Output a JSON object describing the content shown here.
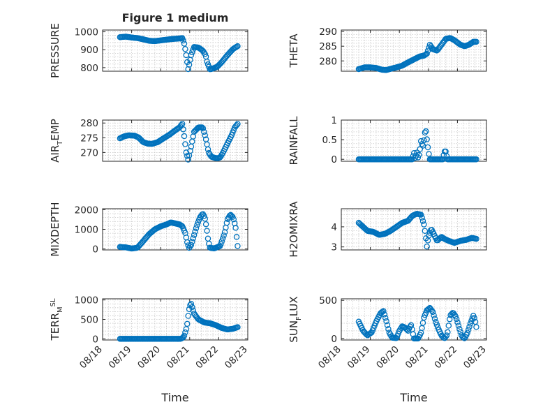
{
  "title": "Figure 1 medium",
  "colors": {
    "marker": "#0072BD",
    "axis": "#262626",
    "grid": "#c8c8c8"
  },
  "chart_data": [
    {
      "id": "pressure",
      "type": "scatter",
      "title": "Figure 1 medium",
      "ylabel_parts": [
        [
          "PRESSURE",
          ""
        ]
      ],
      "yticks": [
        800,
        900,
        1000
      ],
      "ylim": [
        780,
        1010
      ],
      "xlim": [
        0,
        5
      ],
      "xticklabels": [],
      "xlabel": "",
      "grid": true,
      "knots": [
        [
          0.6,
          970
        ],
        [
          0.8,
          973
        ],
        [
          1.0,
          968
        ],
        [
          1.2,
          965
        ],
        [
          1.4,
          958
        ],
        [
          1.6,
          950
        ],
        [
          1.8,
          948
        ],
        [
          2.0,
          952
        ],
        [
          2.2,
          956
        ],
        [
          2.4,
          960
        ],
        [
          2.6,
          962
        ],
        [
          2.75,
          965
        ],
        [
          2.82,
          930
        ],
        [
          2.88,
          870
        ],
        [
          2.95,
          790
        ],
        [
          3.05,
          870
        ],
        [
          3.15,
          915
        ],
        [
          3.3,
          912
        ],
        [
          3.45,
          895
        ],
        [
          3.55,
          870
        ],
        [
          3.6,
          830
        ],
        [
          3.7,
          790
        ],
        [
          3.8,
          795
        ],
        [
          3.95,
          805
        ],
        [
          4.1,
          830
        ],
        [
          4.3,
          870
        ],
        [
          4.5,
          905
        ],
        [
          4.65,
          920
        ]
      ]
    },
    {
      "id": "theta",
      "type": "scatter",
      "title": "",
      "ylabel_parts": [
        [
          "THETA",
          ""
        ]
      ],
      "yticks": [
        280,
        285,
        290
      ],
      "ylim": [
        276.5,
        290.5
      ],
      "xlim": [
        0,
        5
      ],
      "xticklabels": [],
      "xlabel": "",
      "grid": true,
      "knots": [
        [
          0.6,
          277.2
        ],
        [
          0.8,
          277.8
        ],
        [
          1.0,
          277.8
        ],
        [
          1.2,
          277.6
        ],
        [
          1.4,
          277.0
        ],
        [
          1.55,
          276.9
        ],
        [
          1.7,
          277.3
        ],
        [
          1.9,
          277.8
        ],
        [
          2.1,
          278.4
        ],
        [
          2.3,
          279.5
        ],
        [
          2.5,
          280.5
        ],
        [
          2.7,
          281.5
        ],
        [
          2.85,
          281.8
        ],
        [
          2.95,
          282.5
        ],
        [
          3.05,
          285.5
        ],
        [
          3.15,
          284.0
        ],
        [
          3.3,
          283.5
        ],
        [
          3.45,
          285.5
        ],
        [
          3.6,
          287.5
        ],
        [
          3.75,
          287.8
        ],
        [
          3.9,
          287.0
        ],
        [
          4.1,
          285.5
        ],
        [
          4.25,
          285.0
        ],
        [
          4.4,
          285.5
        ],
        [
          4.55,
          286.5
        ],
        [
          4.65,
          286.5
        ]
      ]
    },
    {
      "id": "airtemp",
      "type": "scatter",
      "title": "",
      "ylabel_parts": [
        [
          "AIR",
          ""
        ],
        [
          "T",
          "sub"
        ],
        [
          "EMP",
          ""
        ]
      ],
      "yticks": [
        270,
        275,
        280
      ],
      "ylim": [
        267,
        281
      ],
      "xlim": [
        0,
        5
      ],
      "xticklabels": [],
      "xlabel": "",
      "grid": true,
      "knots": [
        [
          0.6,
          274.8
        ],
        [
          0.75,
          275.5
        ],
        [
          0.9,
          275.8
        ],
        [
          1.1,
          275.7
        ],
        [
          1.25,
          275.0
        ],
        [
          1.4,
          273.5
        ],
        [
          1.55,
          273.0
        ],
        [
          1.7,
          272.9
        ],
        [
          1.9,
          273.5
        ],
        [
          2.1,
          274.8
        ],
        [
          2.3,
          276.0
        ],
        [
          2.5,
          277.5
        ],
        [
          2.65,
          278.5
        ],
        [
          2.75,
          279.8
        ],
        [
          2.82,
          275.0
        ],
        [
          2.88,
          270.0
        ],
        [
          2.95,
          267.5
        ],
        [
          3.05,
          272.0
        ],
        [
          3.15,
          277.0
        ],
        [
          3.3,
          278.5
        ],
        [
          3.45,
          278.5
        ],
        [
          3.55,
          275.0
        ],
        [
          3.65,
          270.0
        ],
        [
          3.75,
          268.5
        ],
        [
          3.85,
          268.2
        ],
        [
          3.95,
          268.0
        ],
        [
          4.05,
          268.3
        ],
        [
          4.15,
          270.0
        ],
        [
          4.3,
          273.0
        ],
        [
          4.45,
          276.0
        ],
        [
          4.55,
          278.5
        ],
        [
          4.65,
          279.7
        ]
      ]
    },
    {
      "id": "rainfall",
      "type": "scatter",
      "title": "",
      "ylabel_parts": [
        [
          "RAINFALL",
          ""
        ]
      ],
      "yticks": [
        0,
        0.5,
        1
      ],
      "yticklabels": [
        "0",
        "0.5",
        "1"
      ],
      "ylim": [
        -0.05,
        1.0
      ],
      "xlim": [
        0,
        5
      ],
      "xticklabels": [],
      "xlabel": "",
      "grid": true,
      "knots": [
        [
          0.6,
          0
        ],
        [
          2.45,
          0
        ],
        [
          2.5,
          0.18
        ],
        [
          2.55,
          0
        ],
        [
          2.6,
          0.2
        ],
        [
          2.65,
          0.02
        ],
        [
          2.7,
          0.2
        ],
        [
          2.75,
          0.5
        ],
        [
          2.8,
          0.3
        ],
        [
          2.85,
          0.5
        ],
        [
          2.9,
          0.8
        ],
        [
          2.95,
          0.5
        ],
        [
          3.0,
          0.2
        ],
        [
          3.05,
          0
        ],
        [
          3.5,
          0
        ],
        [
          3.55,
          0.2
        ],
        [
          3.6,
          0.2
        ],
        [
          3.65,
          0
        ],
        [
          4.65,
          0
        ]
      ]
    },
    {
      "id": "mixdepth",
      "type": "scatter",
      "title": "",
      "ylabel_parts": [
        [
          "MIXDEPTH",
          ""
        ]
      ],
      "yticks": [
        0,
        1000,
        2000
      ],
      "ylim": [
        -50,
        2050
      ],
      "xlim": [
        0,
        5
      ],
      "xticklabels": [],
      "xlabel": "",
      "grid": true,
      "knots": [
        [
          0.6,
          100
        ],
        [
          0.8,
          80
        ],
        [
          1.0,
          20
        ],
        [
          1.2,
          60
        ],
        [
          1.4,
          400
        ],
        [
          1.6,
          750
        ],
        [
          1.8,
          1000
        ],
        [
          2.0,
          1150
        ],
        [
          2.2,
          1250
        ],
        [
          2.35,
          1350
        ],
        [
          2.5,
          1300
        ],
        [
          2.65,
          1250
        ],
        [
          2.75,
          1150
        ],
        [
          2.85,
          800
        ],
        [
          2.92,
          300
        ],
        [
          2.98,
          50
        ],
        [
          3.05,
          200
        ],
        [
          3.15,
          700
        ],
        [
          3.25,
          1200
        ],
        [
          3.35,
          1600
        ],
        [
          3.45,
          1800
        ],
        [
          3.52,
          1600
        ],
        [
          3.58,
          1100
        ],
        [
          3.64,
          400
        ],
        [
          3.7,
          50
        ],
        [
          3.85,
          30
        ],
        [
          4.05,
          150
        ],
        [
          4.2,
          800
        ],
        [
          4.3,
          1500
        ],
        [
          4.4,
          1750
        ],
        [
          4.5,
          1600
        ],
        [
          4.58,
          1100
        ],
        [
          4.65,
          150
        ]
      ]
    },
    {
      "id": "h2omixra",
      "type": "scatter",
      "title": "",
      "ylabel_parts": [
        [
          "H2OMIXRA",
          ""
        ]
      ],
      "yticks": [
        3,
        4
      ],
      "ylim": [
        2.85,
        4.9
      ],
      "xlim": [
        0,
        5
      ],
      "xticklabels": [],
      "xlabel": "",
      "grid": true,
      "knots": [
        [
          0.6,
          4.2
        ],
        [
          0.75,
          4.0
        ],
        [
          0.9,
          3.8
        ],
        [
          1.1,
          3.75
        ],
        [
          1.3,
          3.6
        ],
        [
          1.5,
          3.65
        ],
        [
          1.7,
          3.8
        ],
        [
          1.9,
          4.0
        ],
        [
          2.1,
          4.2
        ],
        [
          2.3,
          4.3
        ],
        [
          2.45,
          4.55
        ],
        [
          2.6,
          4.65
        ],
        [
          2.75,
          4.6
        ],
        [
          2.85,
          4.1
        ],
        [
          2.9,
          3.6
        ],
        [
          2.95,
          3.0
        ],
        [
          3.0,
          3.5
        ],
        [
          3.1,
          3.9
        ],
        [
          3.2,
          3.6
        ],
        [
          3.3,
          3.3
        ],
        [
          3.45,
          3.5
        ],
        [
          3.55,
          3.4
        ],
        [
          3.7,
          3.3
        ],
        [
          3.9,
          3.2
        ],
        [
          4.1,
          3.3
        ],
        [
          4.3,
          3.35
        ],
        [
          4.5,
          3.45
        ],
        [
          4.65,
          3.4
        ]
      ]
    },
    {
      "id": "terrmsl",
      "type": "scatter",
      "title": "",
      "ylabel_parts": [
        [
          "TERR",
          ""
        ],
        [
          "M",
          "sub"
        ],
        [
          "SL",
          "sup"
        ]
      ],
      "yticks": [
        0,
        500,
        1000
      ],
      "ylim": [
        -30,
        1030
      ],
      "xlim": [
        0,
        5
      ],
      "xticklabels": [
        "08/18",
        "08/19",
        "08/20",
        "08/21",
        "08/22",
        "08/23"
      ],
      "xlabel": "Time",
      "grid": true,
      "knots": [
        [
          0.6,
          0
        ],
        [
          2.7,
          0
        ],
        [
          2.8,
          50
        ],
        [
          2.9,
          300
        ],
        [
          2.95,
          600
        ],
        [
          3.0,
          850
        ],
        [
          3.05,
          900
        ],
        [
          3.15,
          650
        ],
        [
          3.3,
          500
        ],
        [
          3.5,
          420
        ],
        [
          3.7,
          400
        ],
        [
          3.9,
          350
        ],
        [
          4.1,
          280
        ],
        [
          4.3,
          240
        ],
        [
          4.5,
          260
        ],
        [
          4.65,
          300
        ]
      ]
    },
    {
      "id": "sunflux",
      "type": "scatter",
      "title": "",
      "ylabel_parts": [
        [
          "SUN",
          ""
        ],
        [
          "F",
          "sub"
        ],
        [
          "LUX",
          ""
        ]
      ],
      "yticks": [
        0,
        500
      ],
      "ylim": [
        -20,
        520
      ],
      "xlim": [
        0,
        5
      ],
      "xticklabels": [
        "08/18",
        "08/19",
        "08/20",
        "08/21",
        "08/22",
        "08/23"
      ],
      "xlabel": "Time",
      "grid": true,
      "knots": [
        [
          0.6,
          220
        ],
        [
          0.75,
          100
        ],
        [
          0.9,
          40
        ],
        [
          1.05,
          80
        ],
        [
          1.2,
          220
        ],
        [
          1.35,
          330
        ],
        [
          1.45,
          360
        ],
        [
          1.55,
          230
        ],
        [
          1.65,
          80
        ],
        [
          1.75,
          10
        ],
        [
          1.9,
          5
        ],
        [
          2.0,
          100
        ],
        [
          2.1,
          160
        ],
        [
          2.2,
          140
        ],
        [
          2.3,
          100
        ],
        [
          2.4,
          180
        ],
        [
          2.45,
          100
        ],
        [
          2.5,
          0
        ],
        [
          2.65,
          0
        ],
        [
          2.75,
          80
        ],
        [
          2.85,
          280
        ],
        [
          2.95,
          370
        ],
        [
          3.05,
          400
        ],
        [
          3.15,
          350
        ],
        [
          3.25,
          220
        ],
        [
          3.35,
          120
        ],
        [
          3.45,
          40
        ],
        [
          3.55,
          0
        ],
        [
          3.65,
          50
        ],
        [
          3.75,
          300
        ],
        [
          3.85,
          340
        ],
        [
          3.95,
          280
        ],
        [
          4.05,
          150
        ],
        [
          4.15,
          30
        ],
        [
          4.25,
          0
        ],
        [
          4.35,
          80
        ],
        [
          4.45,
          200
        ],
        [
          4.55,
          300
        ],
        [
          4.6,
          250
        ],
        [
          4.65,
          150
        ]
      ]
    }
  ]
}
